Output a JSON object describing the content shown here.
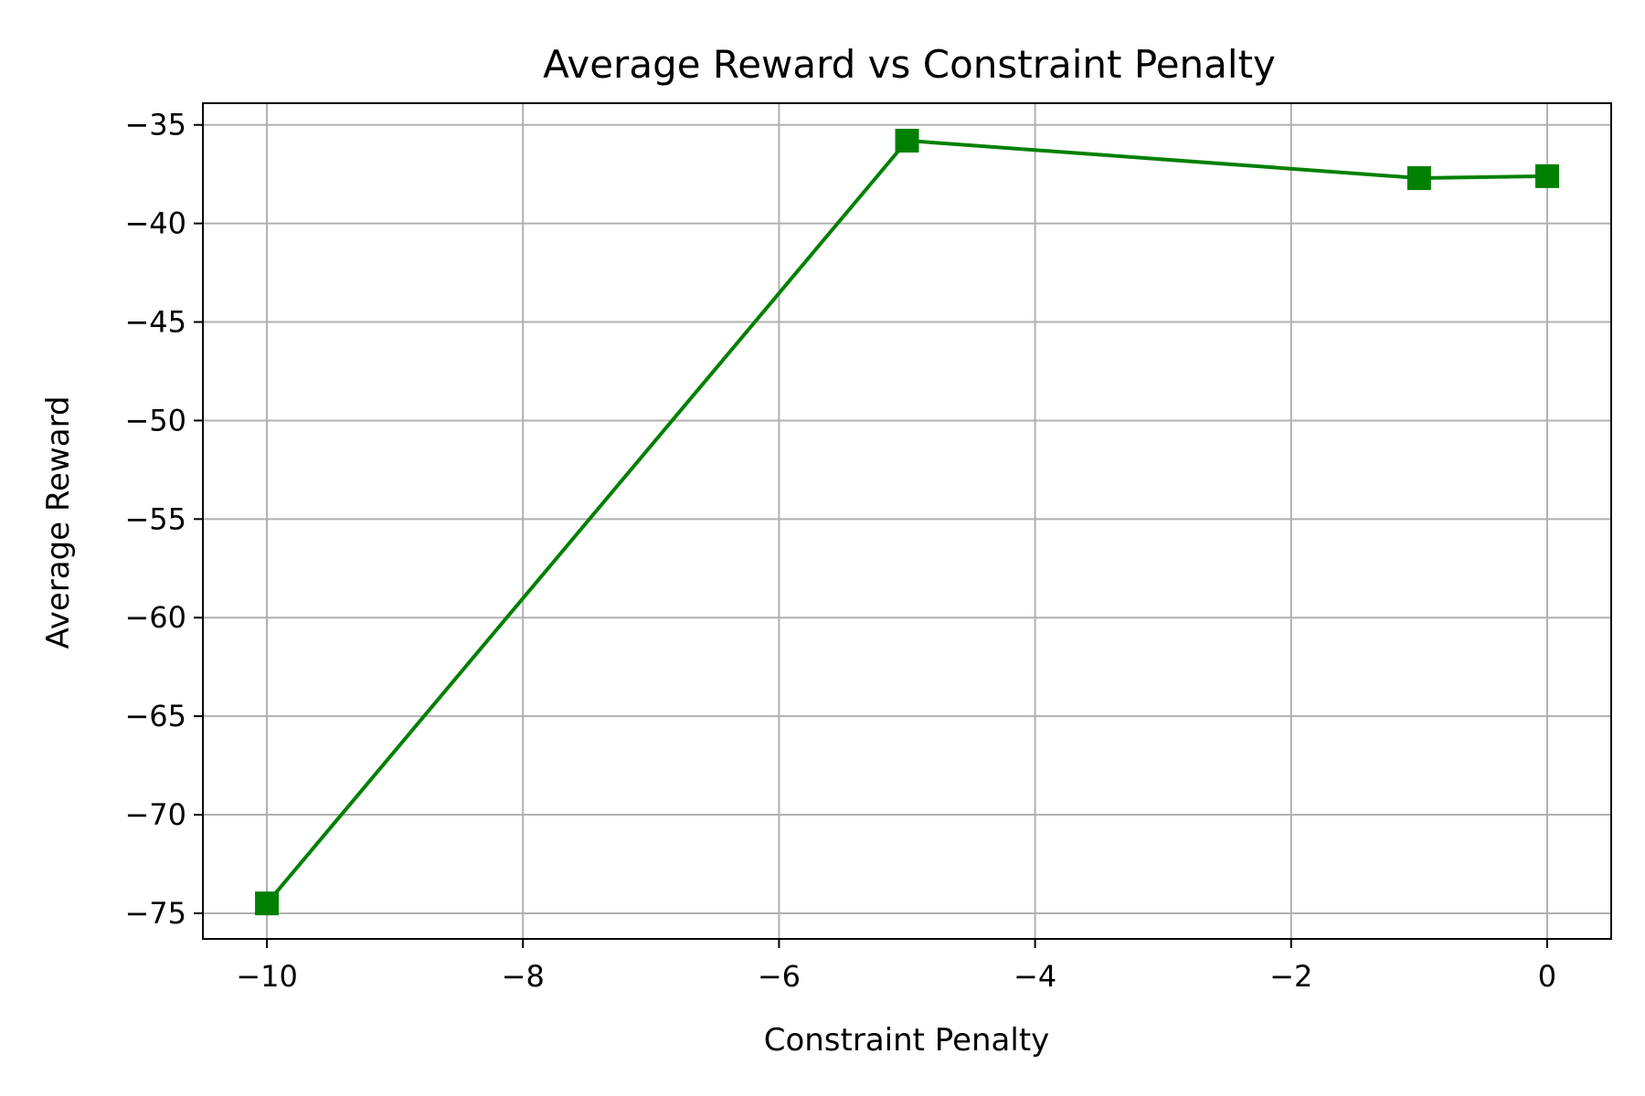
{
  "chart_data": {
    "type": "line",
    "title": "Average Reward vs Constraint Penalty",
    "xlabel": "Constraint Penalty",
    "ylabel": "Average Reward",
    "xlim": [
      -10.5,
      0.5
    ],
    "ylim": [
      -76.3,
      -33.9
    ],
    "xticks": [
      -10,
      -8,
      -6,
      -4,
      -2,
      0
    ],
    "xtick_labels": [
      "−10",
      "−8",
      "−6",
      "−4",
      "−2",
      "0"
    ],
    "yticks": [
      -75,
      -70,
      -65,
      -60,
      -55,
      -50,
      -45,
      -40,
      -35
    ],
    "ytick_labels": [
      "−75",
      "−70",
      "−65",
      "−60",
      "−55",
      "−50",
      "−45",
      "−40",
      "−35"
    ],
    "grid": true,
    "series": [
      {
        "color": "#008000",
        "marker": "square",
        "x": [
          -10,
          -5,
          -1,
          0
        ],
        "y": [
          -74.5,
          -35.8,
          -37.7,
          -37.6
        ]
      }
    ]
  }
}
